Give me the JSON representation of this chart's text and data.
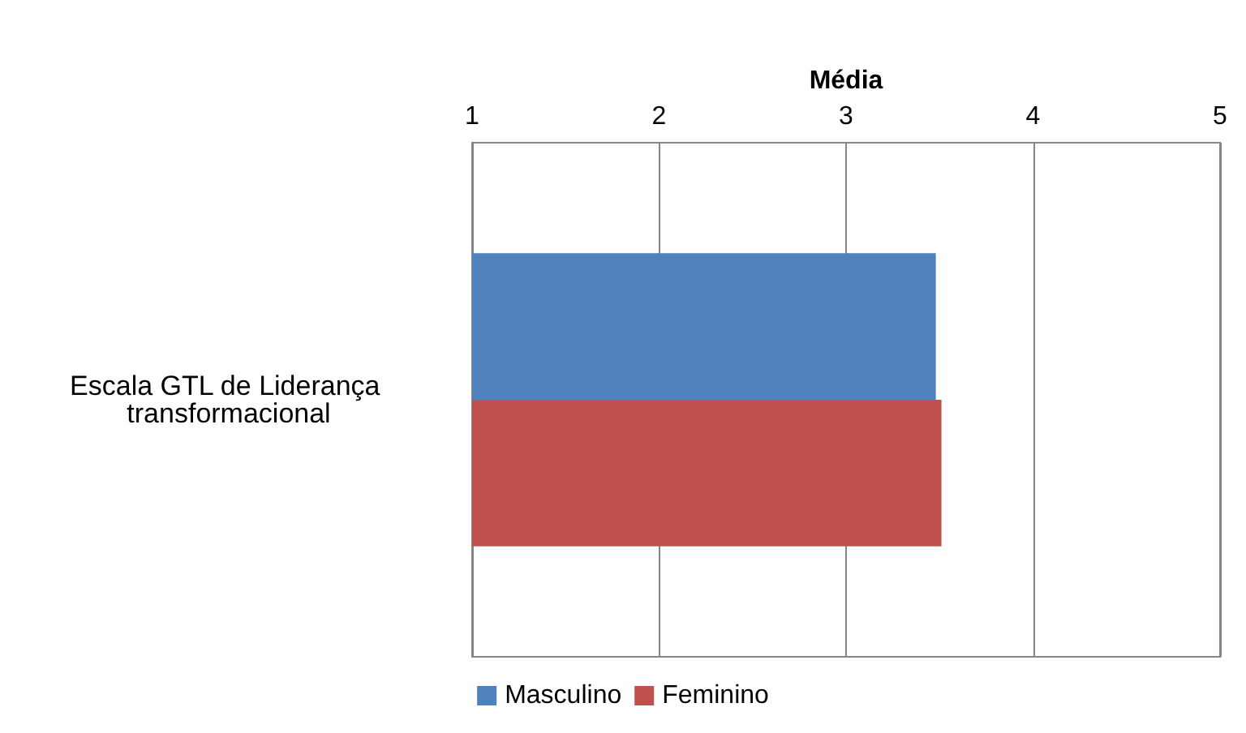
{
  "chart_data": {
    "type": "bar",
    "orientation": "horizontal",
    "xlabel": "Média",
    "categories": [
      "Escala GTL de Liderança transformacional"
    ],
    "series": [
      {
        "name": "Masculino",
        "color": "#4f81bd",
        "values": [
          3.48
        ]
      },
      {
        "name": "Feminino",
        "color": "#c0504d",
        "values": [
          3.51
        ]
      }
    ],
    "xlim": [
      1,
      5
    ],
    "xticks": [
      1,
      2,
      3,
      4,
      5
    ],
    "grid": "x",
    "legend": "bottom"
  }
}
